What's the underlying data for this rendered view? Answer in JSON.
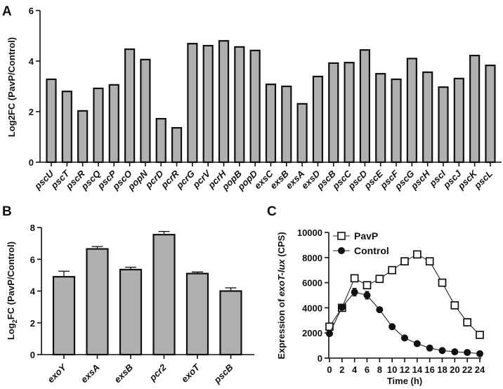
{
  "chart_data": [
    {
      "panel": "A",
      "type": "bar",
      "title": "",
      "xlabel": "",
      "ylabel": "Log2FC (PavP/Control)",
      "ylim": [
        0,
        6
      ],
      "yticks": [
        0,
        2,
        4,
        6
      ],
      "grid": false,
      "categories": [
        "pscU",
        "pscT",
        "pscR",
        "pscQ",
        "pscP",
        "pscO",
        "popN",
        "pcrD",
        "pcrR",
        "pcrG",
        "pcrV",
        "pcrH",
        "popB",
        "popD",
        "exsC",
        "exsB",
        "exsA",
        "exsD",
        "pscB",
        "pscC",
        "pscD",
        "pscE",
        "pscF",
        "pscG",
        "pscH",
        "pscI",
        "pscJ",
        "pscK",
        "pscL"
      ],
      "values": [
        3.28,
        2.8,
        2.03,
        2.92,
        3.06,
        4.47,
        4.06,
        1.72,
        1.36,
        4.69,
        4.61,
        4.8,
        4.56,
        4.42,
        3.08,
        3.0,
        2.31,
        3.39,
        3.92,
        3.94,
        4.44,
        3.5,
        3.28,
        4.1,
        3.56,
        2.97,
        3.31,
        4.22,
        3.83
      ]
    },
    {
      "panel": "B",
      "type": "bar",
      "title": "",
      "xlabel": "",
      "ylabel_main": "Log",
      "ylabel_sub": "2",
      "ylabel_rest": "FC (PavP/Control)",
      "ylim": [
        0,
        8
      ],
      "yticks": [
        0,
        2,
        4,
        6,
        8
      ],
      "grid": false,
      "categories": [
        "exoY",
        "exsA",
        "exsB",
        "pcr2",
        "exoT",
        "pscB"
      ],
      "values": [
        4.9,
        6.65,
        5.35,
        7.55,
        5.1,
        4.0
      ],
      "errors": [
        0.35,
        0.15,
        0.15,
        0.2,
        0.1,
        0.2
      ]
    },
    {
      "panel": "C",
      "type": "line",
      "title": "",
      "xlabel": "Time (h)",
      "ylabel_pre": "Expression of ",
      "ylabel_italic": "exoT-lux",
      "ylabel_post": " (CPS)",
      "xlim": [
        0,
        24
      ],
      "ylim": [
        0,
        10000
      ],
      "xticks": [
        0,
        2,
        4,
        6,
        8,
        10,
        12,
        14,
        16,
        18,
        20,
        22,
        24
      ],
      "yticks": [
        0,
        2000,
        4000,
        6000,
        8000,
        10000
      ],
      "grid": false,
      "legend_position": "top-left",
      "x": [
        0,
        2,
        4,
        6,
        8,
        10,
        12,
        14,
        16,
        18,
        20,
        22,
        24
      ],
      "series": [
        {
          "name": "PavP",
          "marker": "open-square",
          "values": [
            2500,
            4000,
            6350,
            5800,
            6300,
            7000,
            7700,
            8250,
            7700,
            6000,
            4200,
            2850,
            1850
          ],
          "errors": [
            100,
            150,
            100,
            150,
            80,
            80,
            80,
            150,
            250,
            200,
            100,
            80,
            80
          ]
        },
        {
          "name": "Control",
          "marker": "filled-circle",
          "values": [
            1950,
            4050,
            5250,
            5000,
            3850,
            2500,
            1600,
            1150,
            800,
            600,
            500,
            450,
            350
          ],
          "errors": [
            150,
            200,
            300,
            300,
            80,
            80,
            80,
            60,
            60,
            50,
            50,
            40,
            40
          ]
        }
      ]
    }
  ],
  "panel_letters": [
    "A",
    "B",
    "C"
  ]
}
